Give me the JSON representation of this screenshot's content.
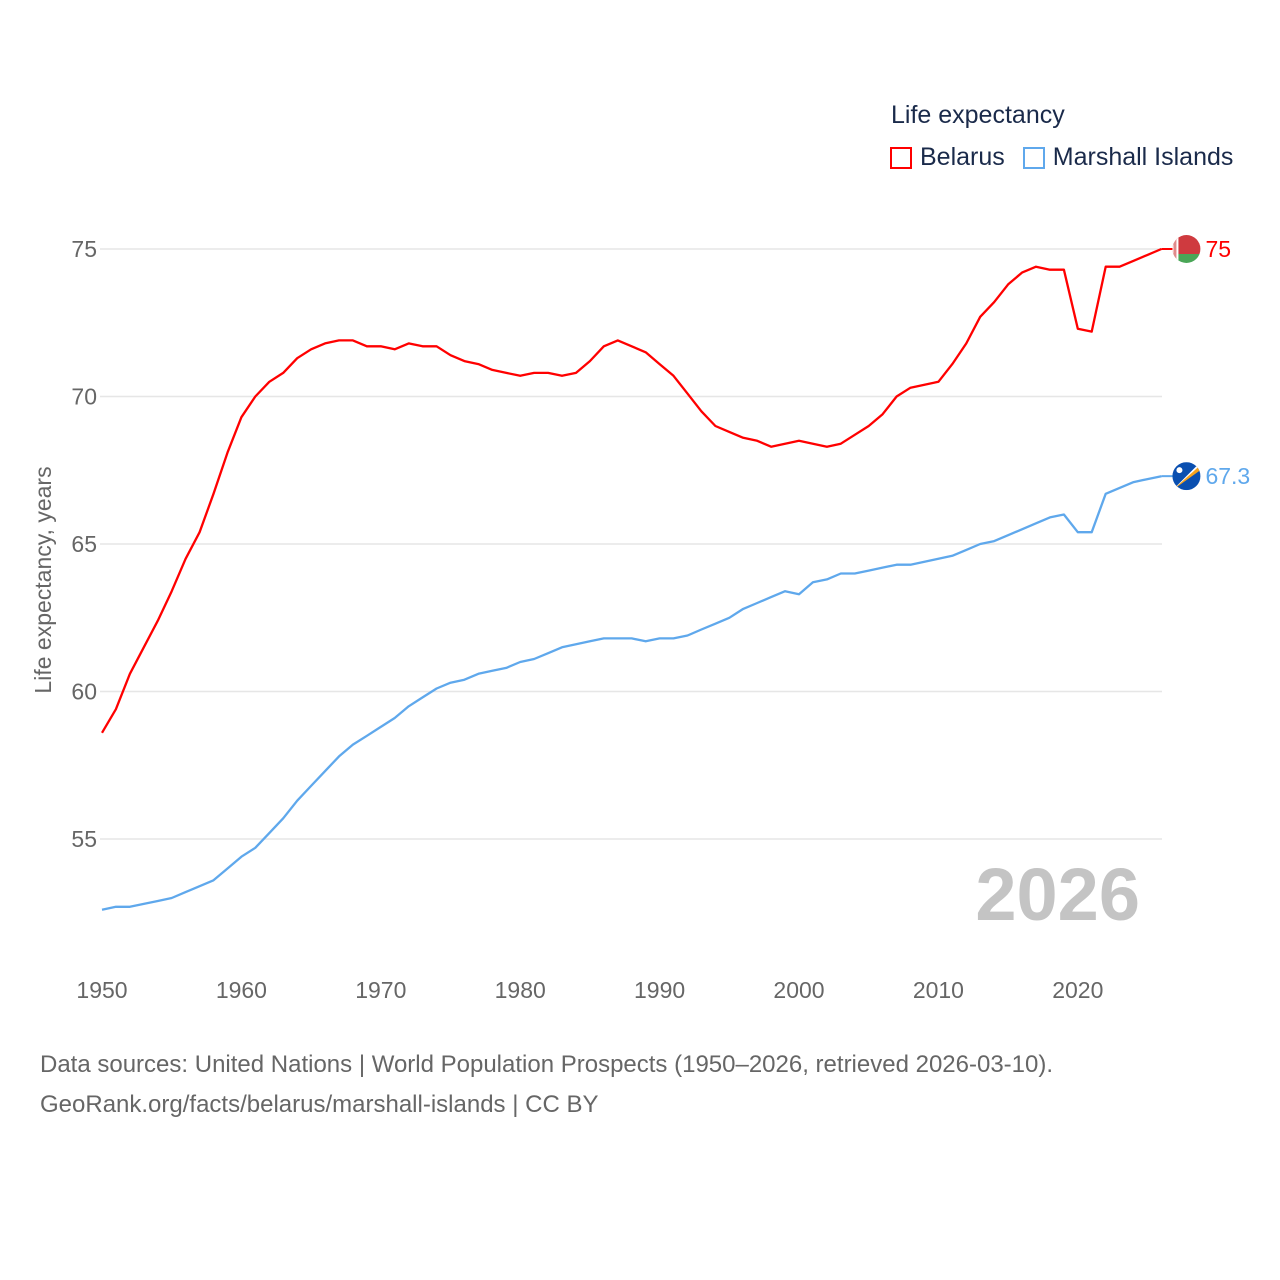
{
  "legend": {
    "title": "Life expectancy",
    "items": [
      {
        "label": "Belarus",
        "color": "#ff0000"
      },
      {
        "label": "Marshall Islands",
        "color": "#5fa8ec"
      }
    ]
  },
  "source": {
    "line1": "Data sources: United Nations | World Population Prospects (1950–2026, retrieved 2026-03-10).",
    "line2": "GeoRank.org/facts/belarus/marshall-islands | CC BY"
  },
  "chart_data": {
    "type": "line",
    "title": "Life expectancy",
    "xlabel": "",
    "ylabel": "Life expectancy, years",
    "year_label": "2026",
    "xlim": [
      1950,
      2026
    ],
    "ylim": [
      51.5,
      77
    ],
    "xticks": [
      1950,
      1960,
      1970,
      1980,
      1990,
      2000,
      2010,
      2020
    ],
    "yticks": [
      55,
      60,
      65,
      70,
      75
    ],
    "grid": true,
    "legend_position": "top-right",
    "x_start": 1950,
    "series": [
      {
        "name": "Belarus",
        "color": "#ff0000",
        "end_label": "75",
        "flag": "belarus-flag",
        "values": [
          58.6,
          59.4,
          60.6,
          61.5,
          62.4,
          63.4,
          64.5,
          65.4,
          66.7,
          68.1,
          69.3,
          70.0,
          70.5,
          70.8,
          71.3,
          71.6,
          71.8,
          71.9,
          71.9,
          71.7,
          71.7,
          71.6,
          71.8,
          71.7,
          71.7,
          71.4,
          71.2,
          71.1,
          70.9,
          70.8,
          70.7,
          70.8,
          70.8,
          70.7,
          70.8,
          71.2,
          71.7,
          71.9,
          71.7,
          71.5,
          71.1,
          70.7,
          70.1,
          69.5,
          69.0,
          68.8,
          68.6,
          68.5,
          68.3,
          68.4,
          68.5,
          68.4,
          68.3,
          68.4,
          68.7,
          69.0,
          69.4,
          70.0,
          70.3,
          70.4,
          70.5,
          71.1,
          71.8,
          72.7,
          73.2,
          73.8,
          74.2,
          74.4,
          74.3,
          74.3,
          72.3,
          72.2,
          74.4,
          74.4,
          74.6,
          74.8,
          75.0
        ]
      },
      {
        "name": "Marshall Islands",
        "color": "#5fa8ec",
        "end_label": "67.3",
        "flag": "marshall-islands-flag",
        "values": [
          52.6,
          52.7,
          52.7,
          52.8,
          52.9,
          53.0,
          53.2,
          53.4,
          53.6,
          54.0,
          54.4,
          54.7,
          55.2,
          55.7,
          56.3,
          56.8,
          57.3,
          57.8,
          58.2,
          58.5,
          58.8,
          59.1,
          59.5,
          59.8,
          60.1,
          60.3,
          60.4,
          60.6,
          60.7,
          60.8,
          61.0,
          61.1,
          61.3,
          61.5,
          61.6,
          61.7,
          61.8,
          61.8,
          61.8,
          61.7,
          61.8,
          61.8,
          61.9,
          62.1,
          62.3,
          62.5,
          62.8,
          63.0,
          63.2,
          63.4,
          63.3,
          63.7,
          63.8,
          64.0,
          64.0,
          64.1,
          64.2,
          64.3,
          64.3,
          64.4,
          64.5,
          64.6,
          64.8,
          65.0,
          65.1,
          65.3,
          65.5,
          65.7,
          65.9,
          66.0,
          65.4,
          65.4,
          66.7,
          66.9,
          67.1,
          67.2,
          67.3
        ]
      }
    ]
  }
}
